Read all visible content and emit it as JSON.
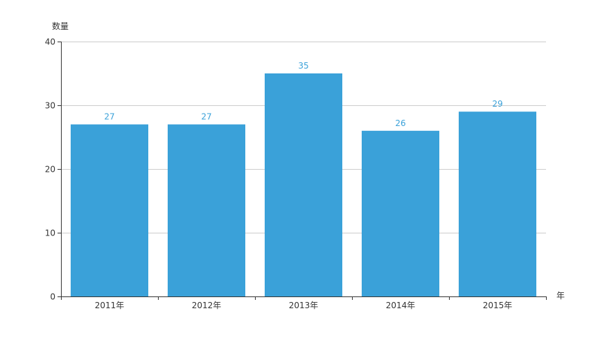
{
  "chart_data": {
    "type": "bar",
    "categories": [
      "2011年",
      "2012年",
      "2013年",
      "2014年",
      "2015年"
    ],
    "values": [
      27,
      27,
      35,
      26,
      29
    ],
    "title": "",
    "xlabel": "年",
    "ylabel": "数量",
    "ylim": [
      0,
      40
    ],
    "yticks": [
      0,
      10,
      20,
      30,
      40
    ],
    "grid": true,
    "bar_color": "#3aa1d9",
    "gridline_color": "#cccccc",
    "axis_color": "#333333"
  }
}
